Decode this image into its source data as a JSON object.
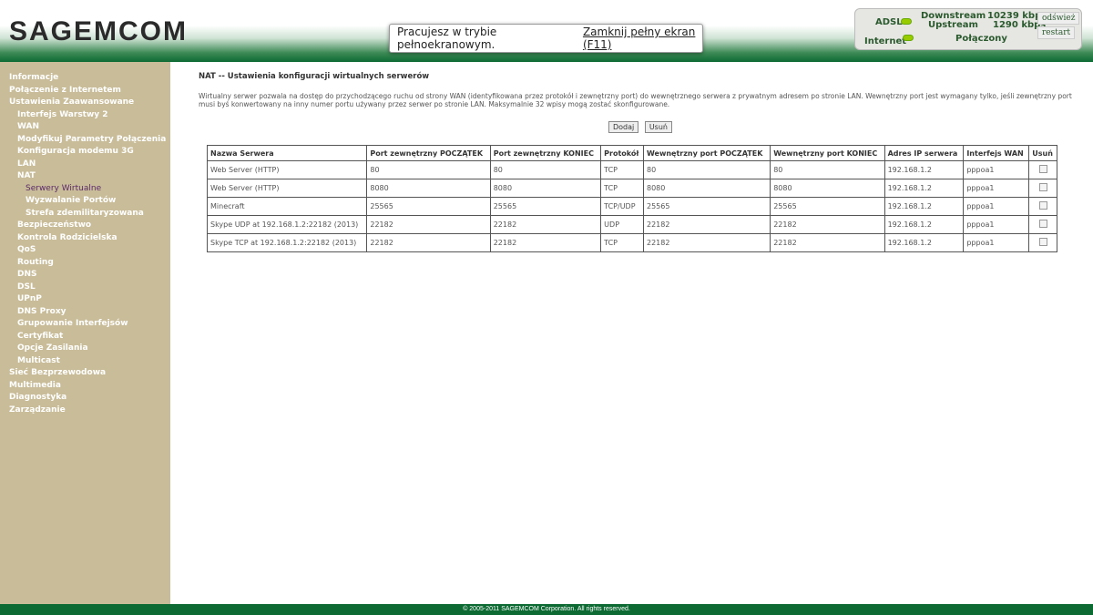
{
  "header": {
    "logo": "SAGEMCOM"
  },
  "fullscreen": {
    "message": "Pracujesz w trybie pełnoekranowym.",
    "exit_link": "Zamknij pełny ekran (F11)"
  },
  "status": {
    "adsl": "ADSL",
    "internet": "Internet",
    "downstream_label": "Downstream",
    "downstream_value": "10239 kbps",
    "upstream_label": "Upstream",
    "upstream_value": "1290 kbps",
    "connection": "Połączony",
    "refresh": "odśwież",
    "restart": "restart",
    "led_color": "#99cc00"
  },
  "sidebar": {
    "items": [
      {
        "label": "Informacje",
        "level": 1
      },
      {
        "label": "Połączenie z Internetem",
        "level": 1
      },
      {
        "label": "Ustawienia Zaawansowane",
        "level": 1
      },
      {
        "label": "Interfejs Warstwy 2",
        "level": 2
      },
      {
        "label": "WAN",
        "level": 2
      },
      {
        "label": "Modyfikuj Parametry Połączenia",
        "level": 2
      },
      {
        "label": "Konfiguracja modemu 3G",
        "level": 2
      },
      {
        "label": "LAN",
        "level": 2
      },
      {
        "label": "NAT",
        "level": 2
      },
      {
        "label": "Serwery Wirtualne",
        "level": 3,
        "active": true
      },
      {
        "label": "Wyzwalanie Portów",
        "level": 3
      },
      {
        "label": "Strefa zdemilitaryzowana",
        "level": 3
      },
      {
        "label": "Bezpieczeństwo",
        "level": 2
      },
      {
        "label": "Kontrola Rodzicielska",
        "level": 2
      },
      {
        "label": "QoS",
        "level": 2
      },
      {
        "label": "Routing",
        "level": 2
      },
      {
        "label": "DNS",
        "level": 2
      },
      {
        "label": "DSL",
        "level": 2
      },
      {
        "label": "UPnP",
        "level": 2
      },
      {
        "label": "DNS Proxy",
        "level": 2
      },
      {
        "label": "Grupowanie Interfejsów",
        "level": 2
      },
      {
        "label": "Certyfikat",
        "level": 2
      },
      {
        "label": "Opcje Zasilania",
        "level": 2
      },
      {
        "label": "Multicast",
        "level": 2
      },
      {
        "label": "Sieć Bezprzewodowa",
        "level": 1
      },
      {
        "label": "Multimedia",
        "level": 1
      },
      {
        "label": "Diagnostyka",
        "level": 1
      },
      {
        "label": "Zarządzanie",
        "level": 1
      }
    ]
  },
  "main": {
    "title": "NAT -- Ustawienia konfiguracji wirtualnych serwerów",
    "description": "Wirtualny serwer pozwala na dostęp do przychodzącego ruchu od strony WAN (identyfikowana przez protokół i zewnętrzny port) do wewnętrznego serwera z prywatnym adresem po stronie LAN. Wewnętrzny port jest wymagany tylko, jeśli zewnętrzny port musi byś konwertowany na inny numer portu używany przez serwer po stronie LAN. Maksymalnie 32 wpisy mogą zostać skonfigurowane.",
    "add_button": "Dodaj",
    "remove_button": "Usuń",
    "columns": [
      "Nazwa Serwera",
      "Port zewnętrzny POCZĄTEK",
      "Port zewnętrzny KONIEC",
      "Protokół",
      "Wewnętrzny port POCZĄTEK",
      "Wewnętrzny port KONIEC",
      "Adres IP serwera",
      "Interfejs WAN",
      "Usuń"
    ],
    "rows": [
      [
        "Web Server (HTTP)",
        "80",
        "80",
        "TCP",
        "80",
        "80",
        "192.168.1.2",
        "pppoa1"
      ],
      [
        "Web Server (HTTP)",
        "8080",
        "8080",
        "TCP",
        "8080",
        "8080",
        "192.168.1.2",
        "pppoa1"
      ],
      [
        "Minecraft",
        "25565",
        "25565",
        "TCP/UDP",
        "25565",
        "25565",
        "192.168.1.2",
        "pppoa1"
      ],
      [
        "Skype UDP at 192.168.1.2:22182 (2013)",
        "22182",
        "22182",
        "UDP",
        "22182",
        "22182",
        "192.168.1.2",
        "pppoa1"
      ],
      [
        "Skype TCP at 192.168.1.2:22182 (2013)",
        "22182",
        "22182",
        "TCP",
        "22182",
        "22182",
        "192.168.1.2",
        "pppoa1"
      ]
    ]
  },
  "footer": {
    "text": "© 2005-2011 SAGEMCOM Corporation. All rights reserved."
  }
}
